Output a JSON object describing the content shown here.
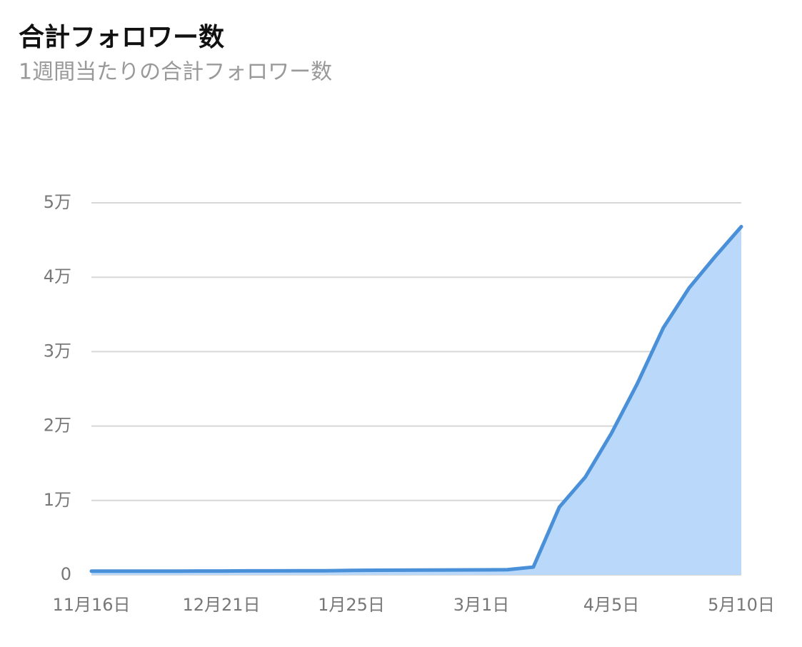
{
  "chart_data": {
    "type": "area",
    "title": "合計フォロワー数",
    "subtitle": "1週間当たりの合計フォロワー数",
    "categories": [
      "11月16日",
      null,
      null,
      null,
      null,
      "12月21日",
      null,
      null,
      null,
      null,
      "1月25日",
      null,
      null,
      null,
      null,
      "3月1日",
      null,
      null,
      null,
      null,
      "4月5日",
      null,
      null,
      null,
      null,
      "5月10日"
    ],
    "series": [
      {
        "name": "合計フォロワー数",
        "color": "#4a90d9",
        "fill": "#b9d8fa",
        "values": [
          500,
          500,
          500,
          500,
          520,
          520,
          540,
          540,
          550,
          550,
          600,
          620,
          630,
          650,
          660,
          670,
          700,
          1050,
          9100,
          13150,
          19000,
          25700,
          33200,
          38600,
          42800,
          46800
        ]
      }
    ],
    "ylim": [
      0,
      50000
    ],
    "yticks": [
      0,
      {
        "value": 10000,
        "label": "1万"
      },
      {
        "value": 20000,
        "label": "2万"
      },
      {
        "value": 30000,
        "label": "3万"
      },
      {
        "value": 40000,
        "label": "4万"
      },
      {
        "value": 50000,
        "label": "5万"
      }
    ],
    "grid": true
  }
}
